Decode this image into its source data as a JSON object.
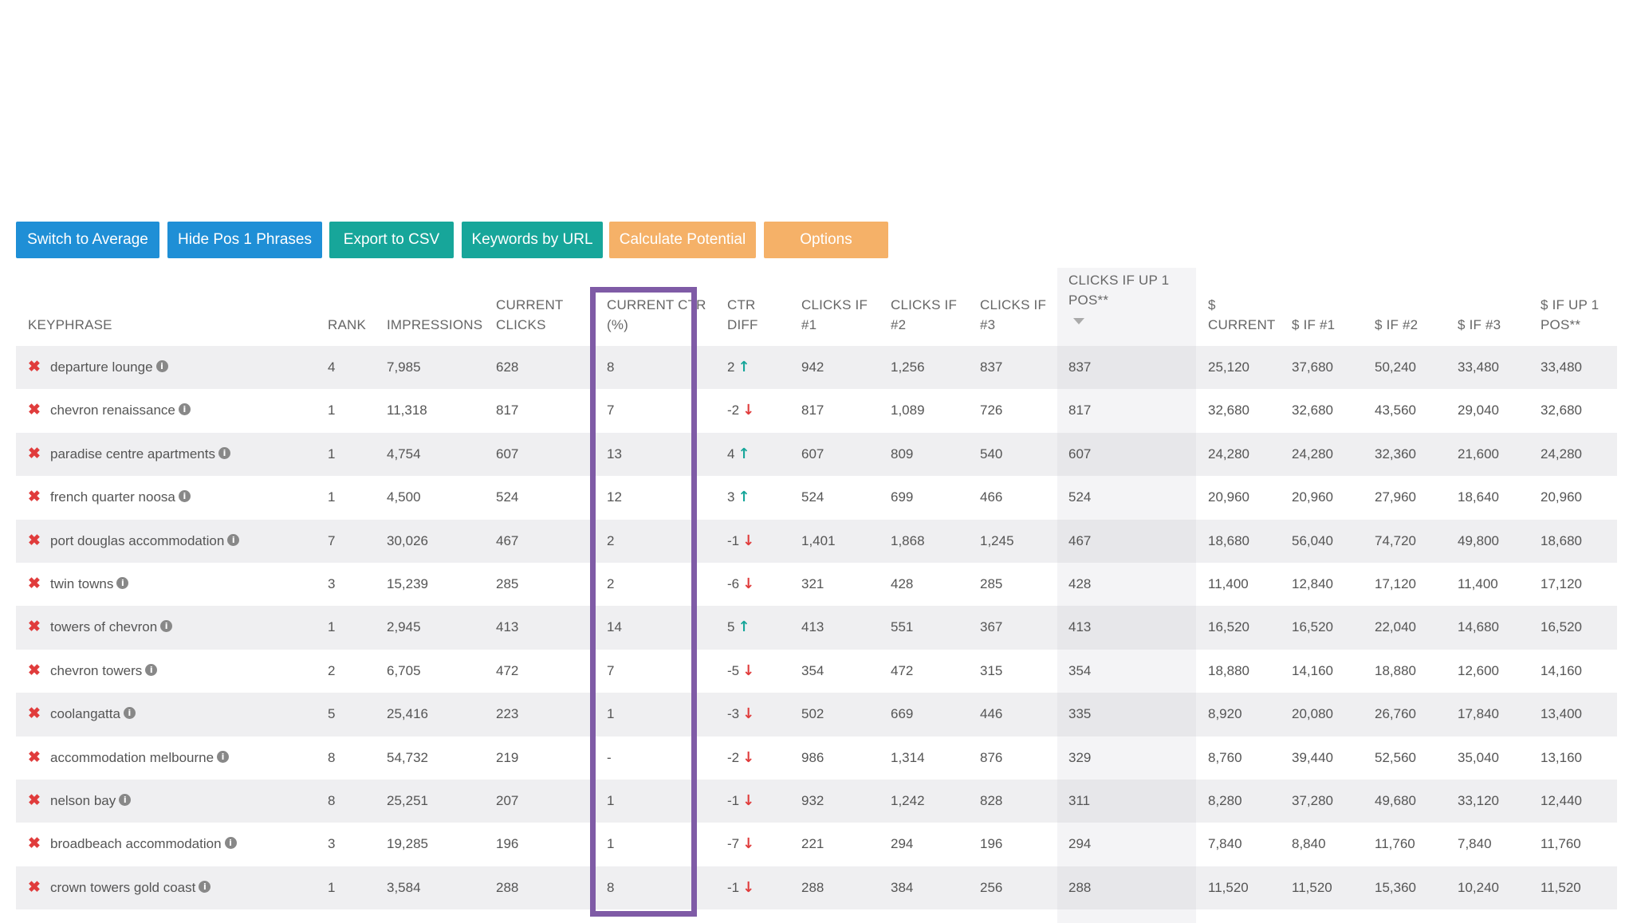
{
  "toolbar": {
    "buttons": [
      {
        "label": "Switch to Average",
        "style": "blue"
      },
      {
        "label": "Hide Pos 1 Phrases",
        "style": "blue"
      },
      {
        "label": "Export to CSV",
        "style": "teal"
      },
      {
        "label": "Keywords by URL",
        "style": "teal"
      },
      {
        "label": "Calculate Potential",
        "style": "orange"
      },
      {
        "label": "Options",
        "style": "orange"
      }
    ]
  },
  "table": {
    "headers": {
      "keyphrase": "KEYPHRASE",
      "rank": "RANK",
      "impressions": "IMPRESSIONS",
      "current_clicks_1": "CURRENT",
      "current_clicks_2": "CLICKS",
      "current_ctr_1": "CURRENT CTR",
      "current_ctr_2": "(%)",
      "ctr_diff_1": "CTR",
      "ctr_diff_2": "DIFF",
      "clicks_if_1_a": "CLICKS IF",
      "clicks_if_1_b": "#1",
      "clicks_if_2_a": "CLICKS IF",
      "clicks_if_2_b": "#2",
      "clicks_if_3_a": "CLICKS IF",
      "clicks_if_3_b": "#3",
      "clicks_up1_a": "CLICKS IF UP 1",
      "clicks_up1_b": "POS**",
      "money_current_a": "$",
      "money_current_b": "CURRENT",
      "money_if_1": "$ IF #1",
      "money_if_2": "$ IF #2",
      "money_if_3": "$ IF #3",
      "money_up1_a": "$ IF UP 1",
      "money_up1_b": "POS**"
    },
    "rows": [
      {
        "keyphrase": "departure lounge",
        "rank": "4",
        "impressions": "7,985",
        "clicks": "628",
        "ctr": "8",
        "diff": "2",
        "dir": "up",
        "c1": "942",
        "c2": "1,256",
        "c3": "837",
        "cup": "837",
        "mcur": "25,120",
        "m1": "37,680",
        "m2": "50,240",
        "m3": "33,480",
        "mup": "33,480"
      },
      {
        "keyphrase": "chevron renaissance",
        "rank": "1",
        "impressions": "11,318",
        "clicks": "817",
        "ctr": "7",
        "diff": "-2",
        "dir": "down",
        "c1": "817",
        "c2": "1,089",
        "c3": "726",
        "cup": "817",
        "mcur": "32,680",
        "m1": "32,680",
        "m2": "43,560",
        "m3": "29,040",
        "mup": "32,680"
      },
      {
        "keyphrase": "paradise centre apartments",
        "rank": "1",
        "impressions": "4,754",
        "clicks": "607",
        "ctr": "13",
        "diff": "4",
        "dir": "up",
        "c1": "607",
        "c2": "809",
        "c3": "540",
        "cup": "607",
        "mcur": "24,280",
        "m1": "24,280",
        "m2": "32,360",
        "m3": "21,600",
        "mup": "24,280"
      },
      {
        "keyphrase": "french quarter noosa",
        "rank": "1",
        "impressions": "4,500",
        "clicks": "524",
        "ctr": "12",
        "diff": "3",
        "dir": "up",
        "c1": "524",
        "c2": "699",
        "c3": "466",
        "cup": "524",
        "mcur": "20,960",
        "m1": "20,960",
        "m2": "27,960",
        "m3": "18,640",
        "mup": "20,960"
      },
      {
        "keyphrase": "port douglas accommodation",
        "rank": "7",
        "impressions": "30,026",
        "clicks": "467",
        "ctr": "2",
        "diff": "-1",
        "dir": "down",
        "c1": "1,401",
        "c2": "1,868",
        "c3": "1,245",
        "cup": "467",
        "mcur": "18,680",
        "m1": "56,040",
        "m2": "74,720",
        "m3": "49,800",
        "mup": "18,680"
      },
      {
        "keyphrase": "twin towns",
        "rank": "3",
        "impressions": "15,239",
        "clicks": "285",
        "ctr": "2",
        "diff": "-6",
        "dir": "down",
        "c1": "321",
        "c2": "428",
        "c3": "285",
        "cup": "428",
        "mcur": "11,400",
        "m1": "12,840",
        "m2": "17,120",
        "m3": "11,400",
        "mup": "17,120"
      },
      {
        "keyphrase": "towers of chevron",
        "rank": "1",
        "impressions": "2,945",
        "clicks": "413",
        "ctr": "14",
        "diff": "5",
        "dir": "up",
        "c1": "413",
        "c2": "551",
        "c3": "367",
        "cup": "413",
        "mcur": "16,520",
        "m1": "16,520",
        "m2": "22,040",
        "m3": "14,680",
        "mup": "16,520"
      },
      {
        "keyphrase": "chevron towers",
        "rank": "2",
        "impressions": "6,705",
        "clicks": "472",
        "ctr": "7",
        "diff": "-5",
        "dir": "down",
        "c1": "354",
        "c2": "472",
        "c3": "315",
        "cup": "354",
        "mcur": "18,880",
        "m1": "14,160",
        "m2": "18,880",
        "m3": "12,600",
        "mup": "14,160"
      },
      {
        "keyphrase": "coolangatta",
        "rank": "5",
        "impressions": "25,416",
        "clicks": "223",
        "ctr": "1",
        "diff": "-3",
        "dir": "down",
        "c1": "502",
        "c2": "669",
        "c3": "446",
        "cup": "335",
        "mcur": "8,920",
        "m1": "20,080",
        "m2": "26,760",
        "m3": "17,840",
        "mup": "13,400"
      },
      {
        "keyphrase": "accommodation melbourne",
        "rank": "8",
        "impressions": "54,732",
        "clicks": "219",
        "ctr": "-",
        "diff": "-2",
        "dir": "down",
        "c1": "986",
        "c2": "1,314",
        "c3": "876",
        "cup": "329",
        "mcur": "8,760",
        "m1": "39,440",
        "m2": "52,560",
        "m3": "35,040",
        "mup": "13,160"
      },
      {
        "keyphrase": "nelson bay",
        "rank": "8",
        "impressions": "25,251",
        "clicks": "207",
        "ctr": "1",
        "diff": "-1",
        "dir": "down",
        "c1": "932",
        "c2": "1,242",
        "c3": "828",
        "cup": "311",
        "mcur": "8,280",
        "m1": "37,280",
        "m2": "49,680",
        "m3": "33,120",
        "mup": "12,440"
      },
      {
        "keyphrase": "broadbeach accommodation",
        "rank": "3",
        "impressions": "19,285",
        "clicks": "196",
        "ctr": "1",
        "diff": "-7",
        "dir": "down",
        "c1": "221",
        "c2": "294",
        "c3": "196",
        "cup": "294",
        "mcur": "7,840",
        "m1": "8,840",
        "m2": "11,760",
        "m3": "7,840",
        "mup": "11,760"
      },
      {
        "keyphrase": "crown towers gold coast",
        "rank": "1",
        "impressions": "3,584",
        "clicks": "288",
        "ctr": "8",
        "diff": "-1",
        "dir": "down",
        "c1": "288",
        "c2": "384",
        "c3": "256",
        "cup": "288",
        "mcur": "11,520",
        "m1": "11,520",
        "m2": "15,360",
        "m3": "10,240",
        "mup": "11,520"
      }
    ]
  },
  "icons": {
    "remove": "x-icon",
    "info": "info-icon",
    "up": "arrow-up-icon",
    "down": "arrow-down-icon",
    "sort": "sort-desc-icon"
  },
  "colors": {
    "blue": "#1f8fd6",
    "teal": "#17a69a",
    "orange": "#f5b168",
    "highlight": "#7f5ba6",
    "remove": "#e03c3c"
  }
}
